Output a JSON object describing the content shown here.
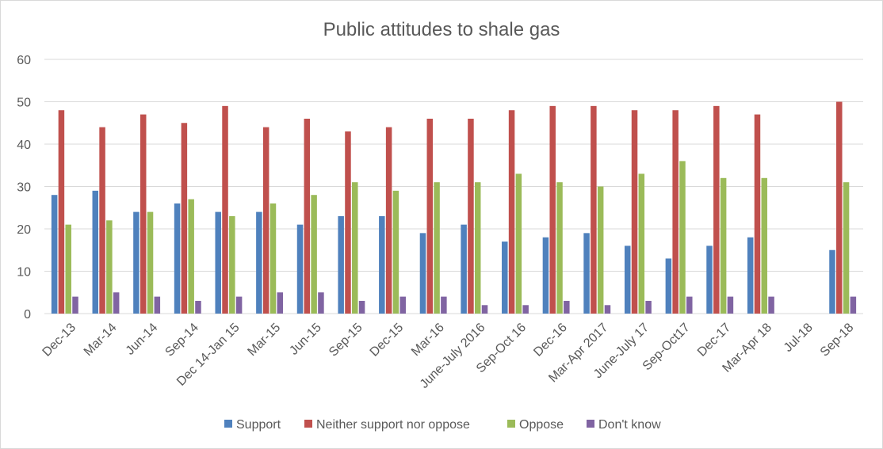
{
  "chart_data": {
    "type": "bar",
    "title": "Public attitudes to shale gas",
    "xlabel": "",
    "ylabel": "",
    "ylim": [
      0,
      60
    ],
    "yticks": [
      0,
      10,
      20,
      30,
      40,
      50,
      60
    ],
    "grid": true,
    "legend_position": "bottom",
    "categories": [
      "Dec-13",
      "Mar-14",
      "Jun-14",
      "Sep-14",
      "Dec 14-Jan 15",
      "Mar-15",
      "Jun-15",
      "Sep-15",
      "Dec-15",
      "Mar-16",
      "June-July 2016",
      "Sep-Oct 16",
      "Dec-16",
      "Mar-Apr 2017",
      "June-July 17",
      "Sep-Oct17",
      "Dec-17",
      "Mar-Apr 18",
      "Jul-18",
      "Sep-18"
    ],
    "series": [
      {
        "name": "Support",
        "color": "#4F81BD",
        "values": [
          28,
          29,
          24,
          26,
          24,
          24,
          21,
          23,
          23,
          19,
          21,
          17,
          18,
          19,
          16,
          13,
          16,
          18,
          null,
          15
        ]
      },
      {
        "name": "Neither support nor oppose",
        "color": "#C0504D",
        "values": [
          48,
          44,
          47,
          45,
          49,
          44,
          46,
          43,
          44,
          46,
          46,
          48,
          49,
          49,
          48,
          48,
          49,
          47,
          null,
          50
        ]
      },
      {
        "name": "Oppose",
        "color": "#9BBB59",
        "values": [
          21,
          22,
          24,
          27,
          23,
          26,
          28,
          31,
          29,
          31,
          31,
          33,
          31,
          30,
          33,
          36,
          32,
          32,
          null,
          31
        ]
      },
      {
        "name": "Don't know",
        "color": "#8064A2",
        "values": [
          4,
          5,
          4,
          3,
          4,
          5,
          5,
          3,
          4,
          4,
          2,
          2,
          3,
          2,
          3,
          4,
          4,
          4,
          null,
          4
        ]
      }
    ]
  },
  "colors": {
    "gridline": "#d9d9d9",
    "axis_text": "#595959",
    "border": "#d9d9d9"
  }
}
